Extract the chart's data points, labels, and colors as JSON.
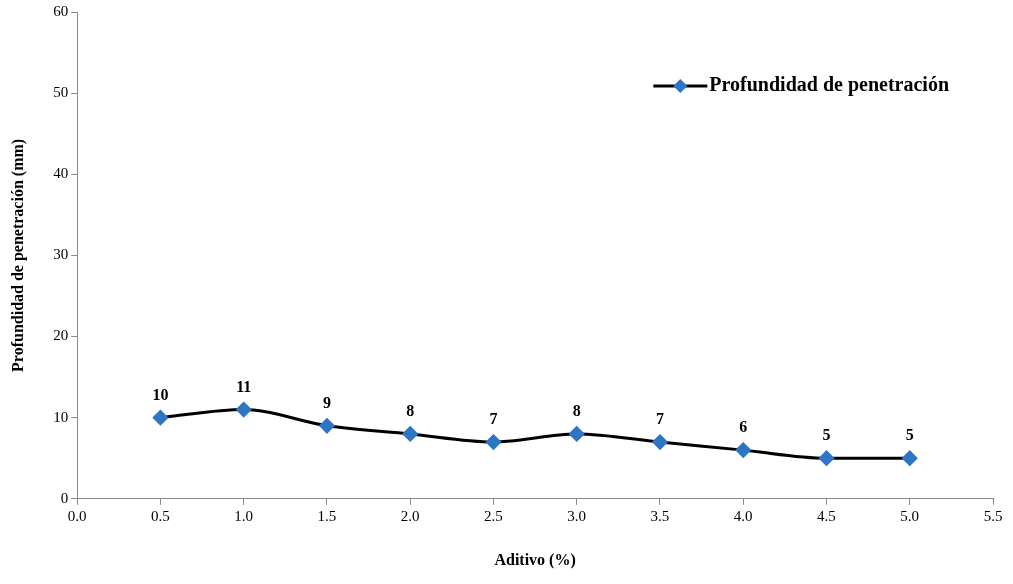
{
  "chart_data": {
    "type": "line",
    "xlabel": "Aditivo (%)",
    "ylabel": "Profundidad de penetración (mm)",
    "x": [
      0.5,
      1.0,
      1.5,
      2.0,
      2.5,
      3.0,
      3.5,
      4.0,
      4.5,
      5.0
    ],
    "series": [
      {
        "name": "Profundidad de penetración",
        "color": "#000000",
        "colors": [
          "#2e75c6",
          "#2e75c6",
          "#2e75c6",
          "#2e75c6",
          "#2e75c6",
          "#2e75c6",
          "#2e75c6",
          "#2e75c6",
          "#2e75c6",
          "#2e75c6"
        ],
        "values": [
          10,
          11,
          9,
          8,
          7,
          8,
          7,
          6,
          5,
          5
        ]
      }
    ],
    "xlim": [
      0,
      5.5
    ],
    "xticks": [
      {
        "value": 0,
        "label": "0.0"
      },
      {
        "value": 0.5,
        "label": "0.5"
      },
      {
        "value": 1,
        "label": "1.0"
      },
      {
        "value": 1.5,
        "label": "1.5"
      },
      {
        "value": 2,
        "label": "2.0"
      },
      {
        "value": 2.5,
        "label": "2.5"
      },
      {
        "value": 3,
        "label": "3.0"
      },
      {
        "value": 3.5,
        "label": "3.5"
      },
      {
        "value": 4,
        "label": "4.0"
      },
      {
        "value": 4.5,
        "label": "4.5"
      },
      {
        "value": 5,
        "label": "5.0"
      },
      {
        "value": 5.5,
        "label": "5.5"
      }
    ],
    "ylim": [
      0,
      60
    ],
    "yticks": [
      0,
      10,
      20,
      30,
      40,
      50,
      60
    ],
    "grid": false,
    "legend": "top right",
    "marker": "diamond",
    "line_style": "solid",
    "data_labels": true
  }
}
